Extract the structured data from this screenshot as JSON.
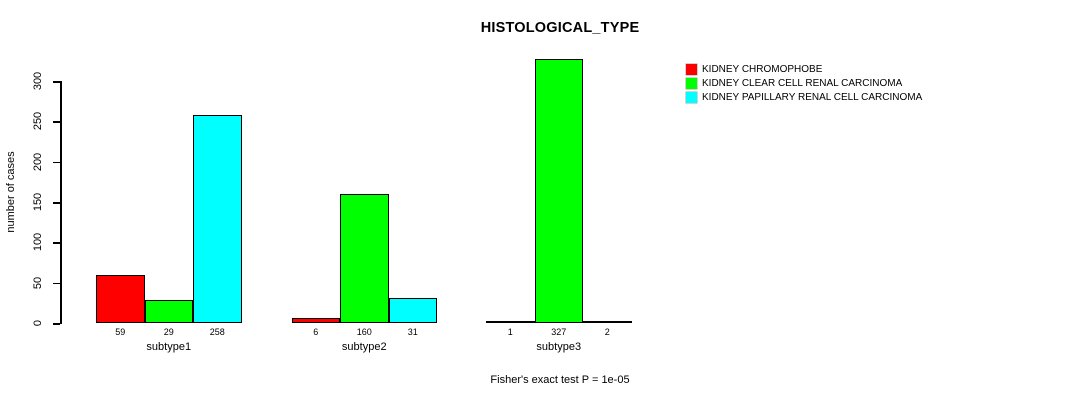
{
  "title": "HISTOLOGICAL_TYPE",
  "footer": "Fisher's exact test P = 1e-05",
  "chart_data": {
    "type": "bar",
    "title": "HISTOLOGICAL_TYPE",
    "xlabel": "",
    "ylabel": "number of cases",
    "categories": [
      "subtype1",
      "subtype2",
      "subtype3"
    ],
    "series": [
      {
        "name": "KIDNEY CHROMOPHOBE",
        "color": "#ff0000",
        "values": [
          59,
          6,
          1
        ]
      },
      {
        "name": "KIDNEY CLEAR CELL RENAL CARCINOMA",
        "color": "#00ff00",
        "values": [
          29,
          160,
          327
        ]
      },
      {
        "name": "KIDNEY PAPILLARY RENAL CELL CARCINOMA",
        "color": "#00ffff",
        "values": [
          258,
          31,
          2
        ]
      }
    ],
    "bar_value_labels": [
      [
        "59",
        "29",
        "258"
      ],
      [
        "6",
        "160",
        "31"
      ],
      [
        "1",
        "327",
        "2"
      ]
    ],
    "yticks": [
      0,
      50,
      100,
      150,
      200,
      250,
      300
    ],
    "ylim": [
      0,
      330
    ],
    "grid": false,
    "legend_position": "top-right",
    "annotation": "Fisher's exact test P = 1e-05"
  }
}
